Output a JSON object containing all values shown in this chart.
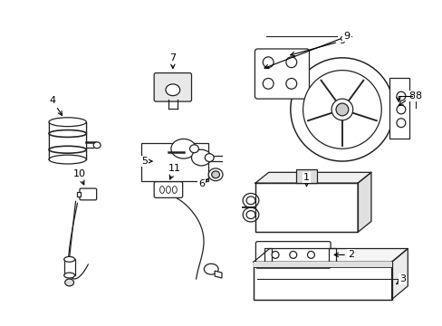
{
  "background_color": "#ffffff",
  "line_color": "#222222",
  "figure_width": 4.89,
  "figure_height": 3.6,
  "dpi": 100
}
